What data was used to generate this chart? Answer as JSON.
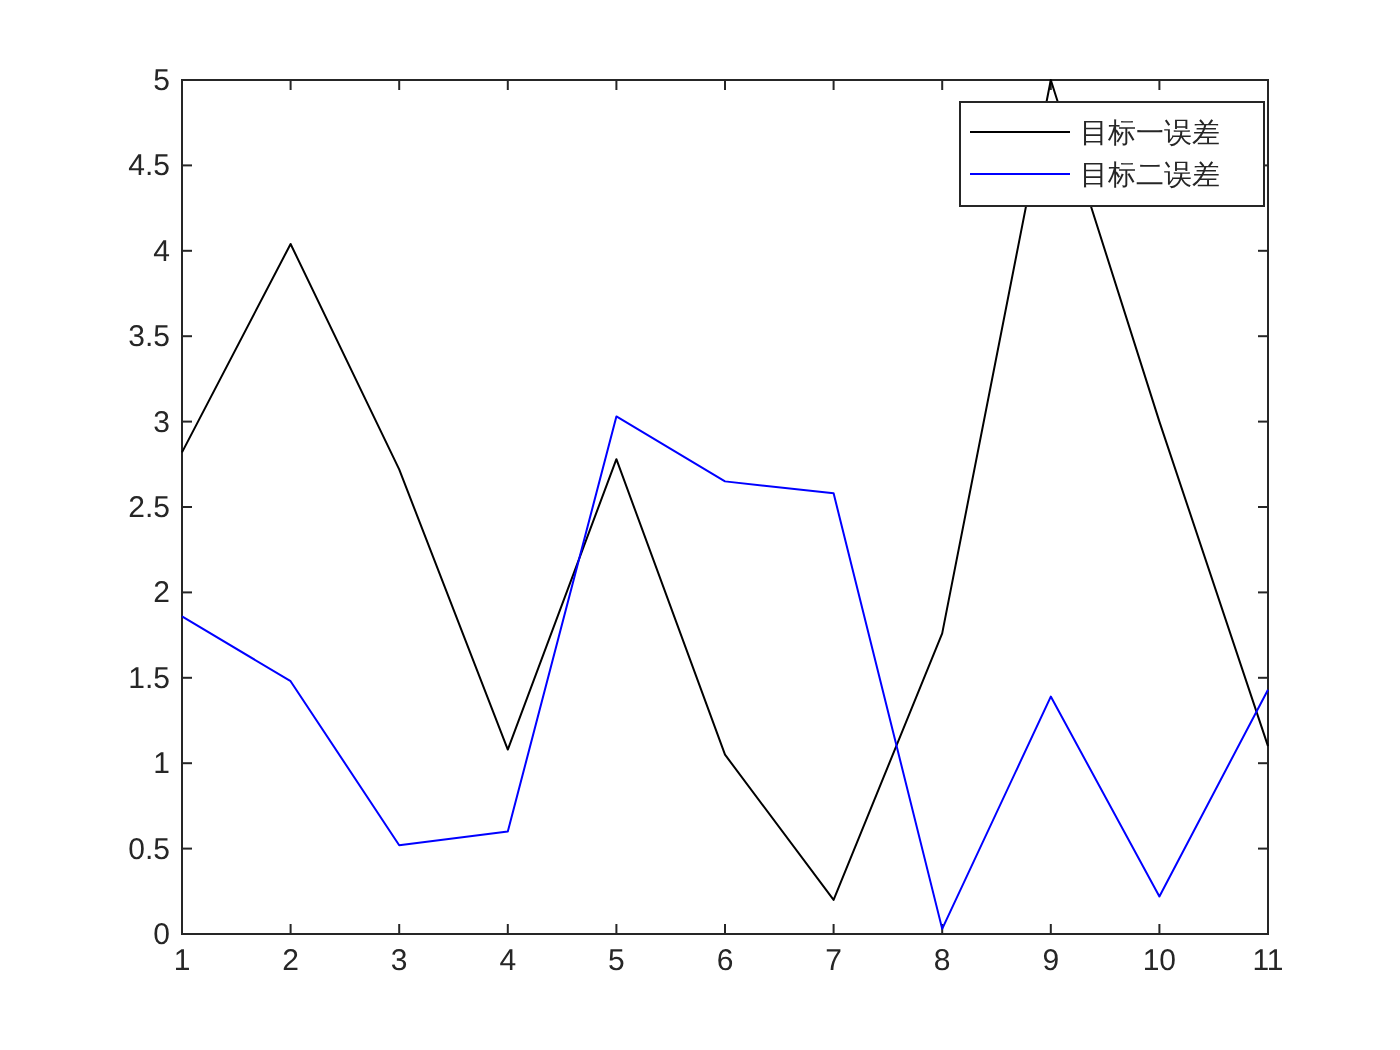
{
  "chart_data": {
    "type": "line",
    "x": [
      1,
      2,
      3,
      4,
      5,
      6,
      7,
      8,
      9,
      10,
      11
    ],
    "xlim": [
      1,
      11
    ],
    "xticks": [
      1,
      2,
      3,
      4,
      5,
      6,
      7,
      8,
      9,
      10,
      11
    ],
    "ylim": [
      0,
      5
    ],
    "yticks": [
      0,
      0.5,
      1,
      1.5,
      2,
      2.5,
      3,
      3.5,
      4,
      4.5,
      5
    ],
    "legend": "top right",
    "grid": false,
    "marker": "none",
    "line_style": "solid",
    "series": [
      {
        "name": "目标一误差",
        "color": "#000000",
        "values": [
          2.82,
          4.04,
          2.72,
          1.08,
          2.78,
          1.05,
          0.2,
          1.76,
          5.0,
          3.0,
          1.1
        ]
      },
      {
        "name": "目标二误差",
        "color": "#0000ff",
        "values": [
          1.86,
          1.48,
          0.52,
          0.6,
          3.03,
          2.65,
          2.58,
          0.03,
          1.39,
          0.22,
          1.43
        ]
      }
    ]
  }
}
